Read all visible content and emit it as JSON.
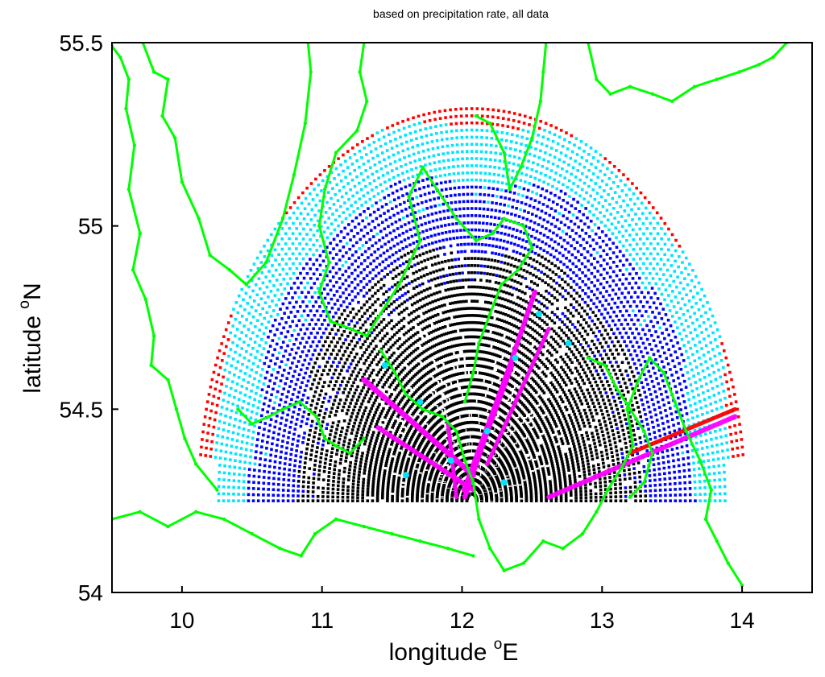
{
  "chart_data": {
    "type": "scatter",
    "title": "based on precipitation rate, all data",
    "xlabel": {
      "text": "longitude",
      "sup": "o",
      "unit": "E"
    },
    "ylabel": {
      "text": "latitude",
      "sup": "o",
      "unit": "N"
    },
    "xlim": [
      9.5,
      14.5
    ],
    "ylim": [
      54.0,
      55.5
    ],
    "xticks": [
      10,
      11,
      12,
      13,
      14
    ],
    "yticks": [
      54,
      54.5,
      55,
      55.5
    ],
    "xtick_labels": [
      "10",
      "11",
      "12",
      "13",
      "14"
    ],
    "ytick_labels": [
      "54",
      "54.5",
      "55",
      "55.5"
    ],
    "grid": false,
    "radar": {
      "center": [
        12.07,
        54.25
      ],
      "range_deg_lat": 1.07,
      "range_deg_lon": 1.95,
      "bands": [
        {
          "class": "outermost",
          "color": "#ff0000",
          "r_from": 0.985,
          "r_to": 1.0
        },
        {
          "class": "outer",
          "color": "#00e5ff",
          "r_from": 0.84,
          "r_to": 0.985
        },
        {
          "class": "middle",
          "color": "#0000ff",
          "r_from": 0.66,
          "r_to": 0.84
        },
        {
          "class": "inner",
          "color": "#000000",
          "r_from": 0.0,
          "r_to": 0.66
        }
      ]
    },
    "series": [
      {
        "class": "coastline",
        "color": "#00ff00",
        "lines": [
          [
            [
              9.5,
              55.49
            ],
            [
              9.56,
              55.46
            ],
            [
              9.62,
              55.4
            ],
            [
              9.6,
              55.32
            ],
            [
              9.66,
              55.22
            ],
            [
              9.62,
              55.1
            ],
            [
              9.7,
              54.98
            ],
            [
              9.65,
              54.88
            ],
            [
              9.74,
              54.8
            ],
            [
              9.8,
              54.7
            ],
            [
              9.78,
              54.62
            ],
            [
              9.9,
              54.58
            ],
            [
              9.96,
              54.5
            ],
            [
              10.02,
              54.42
            ],
            [
              10.1,
              54.35
            ],
            [
              10.25,
              54.28
            ]
          ],
          [
            [
              9.72,
              55.5
            ],
            [
              9.8,
              55.42
            ],
            [
              9.9,
              55.4
            ],
            [
              9.86,
              55.3
            ],
            [
              9.95,
              55.24
            ],
            [
              10.0,
              55.12
            ],
            [
              10.12,
              55.02
            ],
            [
              10.2,
              54.92
            ],
            [
              10.34,
              54.88
            ],
            [
              10.46,
              54.84
            ],
            [
              10.6,
              54.9
            ],
            [
              10.72,
              55.02
            ],
            [
              10.8,
              55.14
            ],
            [
              10.88,
              55.28
            ],
            [
              10.92,
              55.42
            ],
            [
              10.9,
              55.5
            ]
          ],
          [
            [
              11.3,
              55.5
            ],
            [
              11.27,
              55.42
            ],
            [
              11.32,
              55.34
            ],
            [
              11.25,
              55.26
            ],
            [
              11.1,
              55.2
            ],
            [
              11.02,
              55.1
            ],
            [
              10.98,
              55.0
            ],
            [
              11.05,
              54.9
            ],
            [
              10.98,
              54.82
            ],
            [
              11.06,
              54.74
            ],
            [
              11.2,
              54.72
            ],
            [
              11.32,
              54.7
            ],
            [
              11.4,
              54.75
            ],
            [
              11.55,
              54.84
            ],
            [
              11.7,
              54.96
            ],
            [
              11.62,
              55.08
            ],
            [
              11.72,
              55.16
            ],
            [
              11.82,
              55.1
            ],
            [
              11.96,
              55.02
            ],
            [
              12.1,
              54.96
            ],
            [
              12.22,
              54.98
            ],
            [
              12.3,
              55.02
            ],
            [
              12.44,
              55.0
            ],
            [
              12.5,
              54.94
            ],
            [
              12.4,
              54.88
            ],
            [
              12.28,
              54.84
            ],
            [
              12.2,
              54.76
            ],
            [
              12.12,
              54.68
            ],
            [
              12.08,
              54.6
            ],
            [
              12.02,
              54.52
            ]
          ],
          [
            [
              11.42,
              54.66
            ],
            [
              11.52,
              54.6
            ],
            [
              11.6,
              54.54
            ],
            [
              11.72,
              54.5
            ],
            [
              11.86,
              54.48
            ],
            [
              11.96,
              54.44
            ],
            [
              12.02,
              54.36
            ],
            [
              12.08,
              54.3
            ],
            [
              12.12,
              54.2
            ],
            [
              12.2,
              54.12
            ],
            [
              12.3,
              54.06
            ],
            [
              12.44,
              54.08
            ],
            [
              12.58,
              54.14
            ],
            [
              12.72,
              54.12
            ],
            [
              12.86,
              54.16
            ],
            [
              12.96,
              54.22
            ],
            [
              13.04,
              54.28
            ],
            [
              13.14,
              54.34
            ],
            [
              13.22,
              54.4
            ],
            [
              13.18,
              54.5
            ],
            [
              13.26,
              54.58
            ],
            [
              13.34,
              54.64
            ],
            [
              13.44,
              54.6
            ],
            [
              13.52,
              54.52
            ],
            [
              13.6,
              54.44
            ],
            [
              13.7,
              54.36
            ],
            [
              13.78,
              54.28
            ],
            [
              13.74,
              54.2
            ],
            [
              13.82,
              54.14
            ],
            [
              13.9,
              54.08
            ],
            [
              14.0,
              54.02
            ]
          ],
          [
            [
              12.6,
              55.5
            ],
            [
              12.58,
              55.42
            ],
            [
              12.56,
              55.34
            ],
            [
              12.5,
              55.24
            ],
            [
              12.42,
              55.16
            ],
            [
              12.34,
              55.1
            ],
            [
              12.3,
              55.2
            ],
            [
              12.2,
              55.28
            ],
            [
              12.1,
              55.3
            ]
          ],
          [
            [
              12.9,
              55.5
            ],
            [
              12.96,
              55.4
            ],
            [
              13.06,
              55.36
            ],
            [
              13.2,
              55.38
            ],
            [
              13.36,
              55.36
            ],
            [
              13.5,
              55.34
            ],
            [
              13.66,
              55.38
            ],
            [
              13.82,
              55.4
            ],
            [
              13.98,
              55.42
            ],
            [
              14.12,
              55.44
            ],
            [
              14.22,
              55.46
            ],
            [
              14.32,
              55.5
            ]
          ],
          [
            [
              9.5,
              54.2
            ],
            [
              9.7,
              54.22
            ],
            [
              9.9,
              54.18
            ],
            [
              10.1,
              54.22
            ],
            [
              10.3,
              54.2
            ],
            [
              10.5,
              54.16
            ],
            [
              10.7,
              54.12
            ],
            [
              10.85,
              54.1
            ],
            [
              10.95,
              54.16
            ],
            [
              11.1,
              54.2
            ],
            [
              11.3,
              54.18
            ],
            [
              11.5,
              54.16
            ],
            [
              11.7,
              54.14
            ],
            [
              11.9,
              54.12
            ],
            [
              12.08,
              54.1
            ]
          ],
          [
            [
              10.4,
              54.5
            ],
            [
              10.5,
              54.46
            ],
            [
              10.62,
              54.48
            ],
            [
              10.72,
              54.5
            ],
            [
              10.84,
              54.52
            ],
            [
              10.96,
              54.48
            ],
            [
              11.02,
              54.42
            ],
            [
              11.1,
              54.4
            ],
            [
              11.2,
              54.38
            ],
            [
              11.3,
              54.42
            ]
          ],
          [
            [
              12.9,
              54.64
            ],
            [
              13.02,
              54.62
            ],
            [
              13.1,
              54.56
            ],
            [
              13.2,
              54.5
            ],
            [
              13.3,
              54.44
            ],
            [
              13.36,
              54.38
            ],
            [
              13.3,
              54.3
            ],
            [
              13.2,
              54.26
            ]
          ]
        ]
      }
    ]
  }
}
